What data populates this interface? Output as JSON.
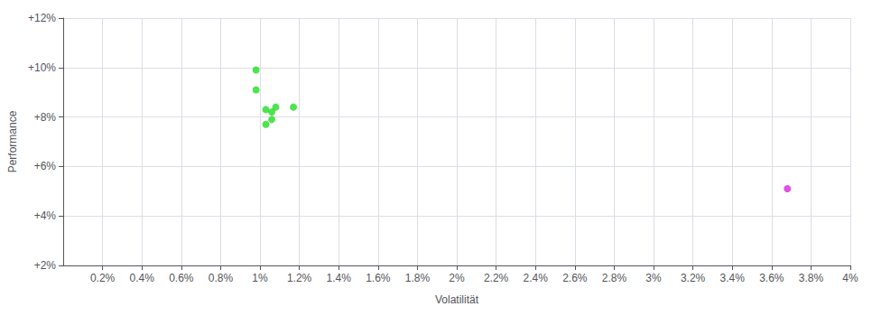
{
  "chart_data": {
    "type": "scatter",
    "xlabel": "Volatilität",
    "ylabel": "Performance",
    "xlim": [
      0.0,
      0.04
    ],
    "ylim": [
      0.02,
      0.12
    ],
    "xticks": [
      {
        "value": 0.002,
        "label": "0.2%"
      },
      {
        "value": 0.004,
        "label": "0.4%"
      },
      {
        "value": 0.006,
        "label": "0.6%"
      },
      {
        "value": 0.008,
        "label": "0.8%"
      },
      {
        "value": 0.01,
        "label": "1%"
      },
      {
        "value": 0.012,
        "label": "1.2%"
      },
      {
        "value": 0.014,
        "label": "1.4%"
      },
      {
        "value": 0.016,
        "label": "1.6%"
      },
      {
        "value": 0.018,
        "label": "1.8%"
      },
      {
        "value": 0.02,
        "label": "2%"
      },
      {
        "value": 0.022,
        "label": "2.2%"
      },
      {
        "value": 0.024,
        "label": "2.4%"
      },
      {
        "value": 0.026,
        "label": "2.6%"
      },
      {
        "value": 0.028,
        "label": "2.8%"
      },
      {
        "value": 0.03,
        "label": "3%"
      },
      {
        "value": 0.032,
        "label": "3.2%"
      },
      {
        "value": 0.034,
        "label": "3.4%"
      },
      {
        "value": 0.036,
        "label": "3.6%"
      },
      {
        "value": 0.038,
        "label": "3.8%"
      },
      {
        "value": 0.04,
        "label": "4%"
      }
    ],
    "yticks": [
      {
        "value": 0.02,
        "label": "+2%"
      },
      {
        "value": 0.04,
        "label": "+4%"
      },
      {
        "value": 0.06,
        "label": "+6%"
      },
      {
        "value": 0.08,
        "label": "+8%"
      },
      {
        "value": 0.1,
        "label": "+10%"
      },
      {
        "value": 0.12,
        "label": "+12%"
      }
    ],
    "grid": true,
    "series": [
      {
        "color": "#22dd22",
        "x": [
          0.0098,
          0.0098,
          0.0103,
          0.0106,
          0.0108,
          0.0106,
          0.0103,
          0.0117
        ],
        "values": [
          0.099,
          0.091,
          0.083,
          0.082,
          0.084,
          0.079,
          0.077,
          0.084
        ]
      },
      {
        "color": "#dd22dd",
        "x": [
          0.0368
        ],
        "values": [
          0.051
        ]
      }
    ]
  }
}
